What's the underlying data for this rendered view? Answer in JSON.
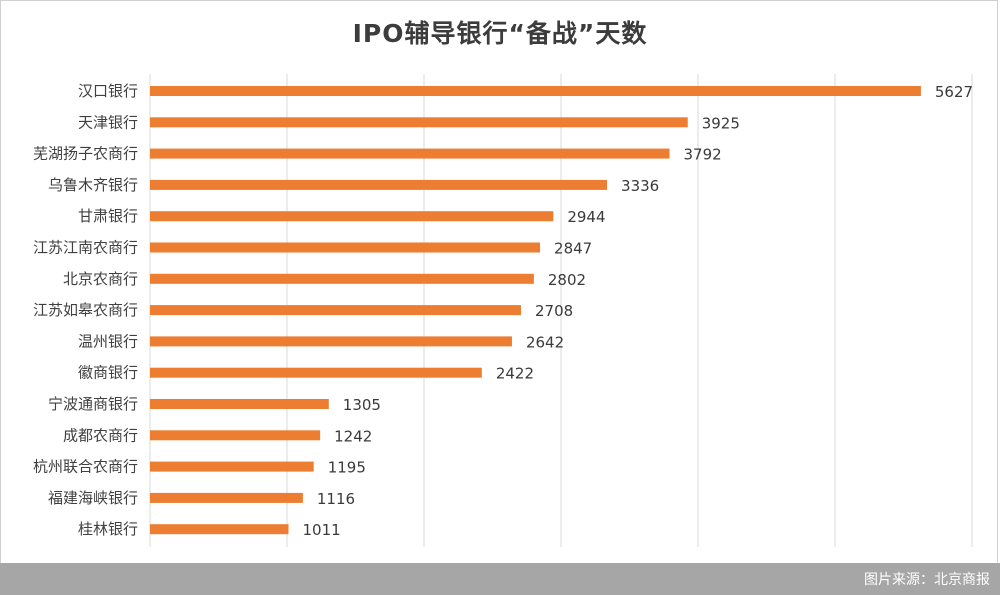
{
  "chart_data": {
    "type": "bar",
    "orientation": "horizontal",
    "title": "IPO辅导银行“备战”天数",
    "categories": [
      "汉口银行",
      "天津银行",
      "芜湖扬子农商行",
      "乌鲁木齐银行",
      "甘肃银行",
      "江苏江南农商行",
      "北京农商行",
      "江苏如皋农商行",
      "温州银行",
      "徽商银行",
      "宁波通商银行",
      "成都农商行",
      "杭州联合农商行",
      "福建海峡银行",
      "桂林银行"
    ],
    "values": [
      5627,
      3925,
      3792,
      3336,
      2944,
      2847,
      2802,
      2708,
      2642,
      2422,
      1305,
      1242,
      1195,
      1116,
      1011
    ],
    "xlim": [
      0,
      6000
    ],
    "xticks": [
      0,
      1000,
      2000,
      3000,
      4000,
      5000,
      6000
    ],
    "grid": true,
    "bar_color": "#ED7D31",
    "data_labels": true
  },
  "source": "图片来源：北京商报"
}
